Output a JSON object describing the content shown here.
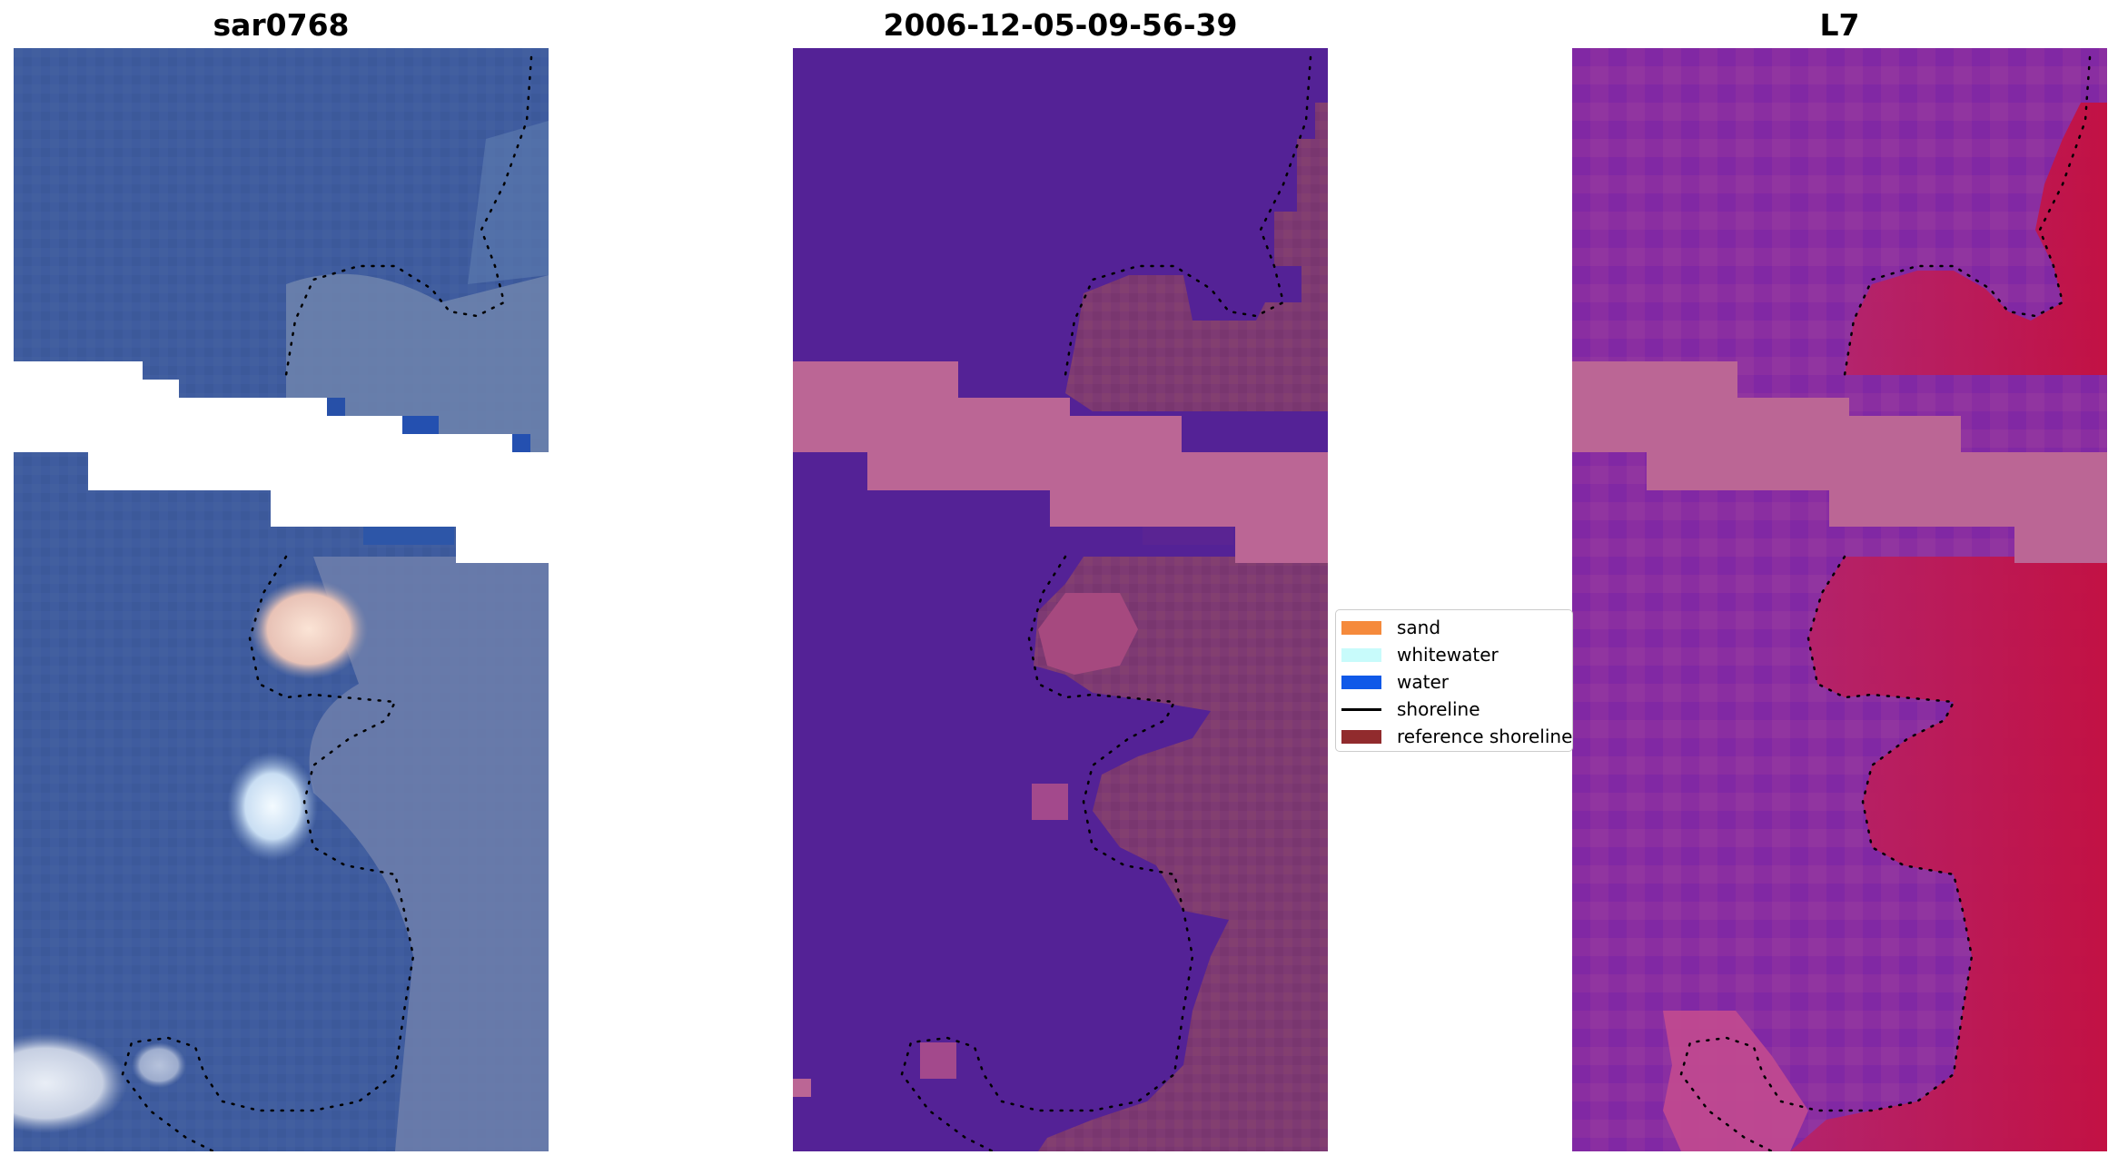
{
  "panels": [
    {
      "title": "sar0768",
      "kind": "rgb-image"
    },
    {
      "title": "2006-12-05-09-56-39",
      "kind": "classification-map"
    },
    {
      "title": "L7",
      "kind": "index-map"
    }
  ],
  "legend": {
    "items": [
      {
        "label": "sand",
        "color": "#f58a3c",
        "shape": "patch"
      },
      {
        "label": "whitewater",
        "color": "#c8fbfb",
        "shape": "patch"
      },
      {
        "label": "water",
        "color": "#1059e8",
        "shape": "patch"
      },
      {
        "label": "shoreline",
        "color": "#000000",
        "shape": "line"
      },
      {
        "label": "reference shoreline",
        "color": "#912b2d",
        "shape": "patch"
      }
    ]
  },
  "colors": {
    "rgb_water": "#3e5d9e",
    "rgb_land": "#6a7ea8",
    "rgb_deep": "#2b4f9c",
    "rgb_sand_bright": "#f6d6c8",
    "rgb_whitewater_bright": "#eef6fb",
    "class_water": "#542296",
    "class_land": "#7e3a73",
    "class_nodata_band": "#bb6695",
    "index_water": "#8c2da0",
    "index_land": "#c8134a",
    "index_nodata_band": "#bb6695",
    "shoreline_dots": "#000000"
  }
}
